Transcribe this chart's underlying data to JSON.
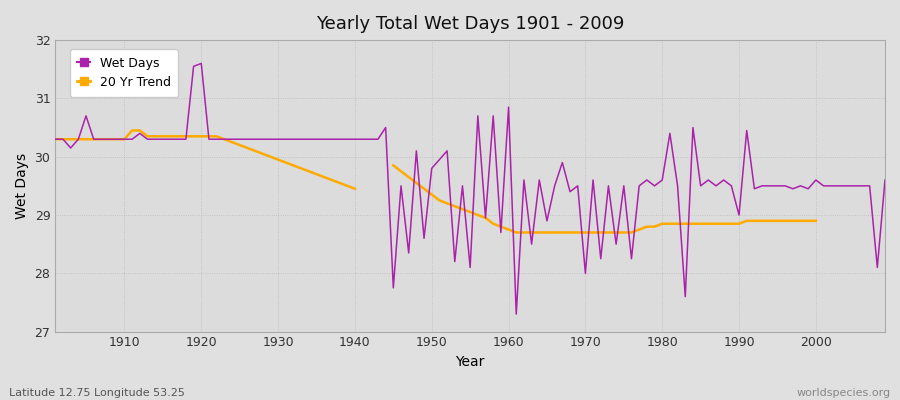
{
  "title": "Yearly Total Wet Days 1901 - 2009",
  "xlabel": "Year",
  "ylabel": "Wet Days",
  "lat_lon_label": "Latitude 12.75 Longitude 53.25",
  "source_label": "worldspecies.org",
  "ylim": [
    27,
    32
  ],
  "yticks": [
    27,
    28,
    29,
    30,
    31,
    32
  ],
  "bg_color": "#e8e8e8",
  "plot_bg_color": "#dcdcdc",
  "wet_days_color": "#aa22aa",
  "trend_color": "#ffaa00",
  "xticks": [
    1910,
    1920,
    1930,
    1940,
    1950,
    1960,
    1970,
    1980,
    1990,
    2000
  ],
  "wet_days": [
    30.3,
    30.3,
    30.15,
    30.3,
    30.7,
    30.3,
    30.3,
    30.3,
    30.3,
    30.3,
    30.3,
    30.4,
    30.3,
    30.3,
    30.3,
    30.3,
    30.3,
    30.3,
    31.55,
    31.6,
    30.3,
    30.3,
    30.3,
    30.3,
    30.3,
    30.3,
    30.3,
    30.3,
    30.3,
    30.3,
    30.3,
    30.3,
    30.3,
    30.3,
    30.3,
    30.3,
    30.3,
    30.3,
    30.3,
    30.3,
    30.3,
    30.3,
    30.3,
    30.5,
    27.75,
    29.5,
    28.35,
    30.1,
    28.6,
    29.8,
    29.95,
    30.1,
    28.2,
    29.5,
    28.1,
    30.7,
    28.95,
    30.7,
    28.7,
    30.85,
    27.3,
    29.6,
    28.5,
    29.6,
    28.9,
    29.5,
    29.9,
    29.4,
    29.5,
    28.0,
    29.6,
    28.25,
    29.5,
    28.5,
    29.5,
    28.25,
    29.5,
    29.6,
    29.5,
    29.6,
    30.4,
    29.5,
    27.6,
    30.5,
    29.5,
    29.6,
    29.5,
    29.6,
    29.5,
    29.0,
    30.45,
    29.45,
    29.5,
    29.5,
    29.5,
    29.5,
    29.45,
    29.5,
    29.45,
    29.6,
    29.5,
    29.5,
    29.5,
    29.5,
    29.5,
    29.5,
    29.5,
    28.1,
    29.6
  ],
  "trend": [
    30.3,
    30.3,
    30.3,
    30.3,
    30.3,
    30.3,
    30.3,
    30.3,
    30.3,
    30.3,
    30.45,
    30.45,
    30.35,
    30.35,
    30.35,
    30.35,
    30.35,
    30.35,
    30.35,
    30.35,
    30.35,
    30.35,
    30.3,
    30.25,
    30.2,
    30.15,
    30.1,
    30.05,
    30.0,
    29.95,
    29.9,
    29.85,
    29.8,
    29.75,
    29.7,
    29.65,
    29.6,
    29.55,
    29.5,
    29.45,
    null,
    null,
    null,
    null,
    29.85,
    29.75,
    29.65,
    29.55,
    29.45,
    29.35,
    29.25,
    29.2,
    29.15,
    29.1,
    29.05,
    29.0,
    28.95,
    28.85,
    28.8,
    28.75,
    28.7,
    28.7,
    28.7,
    28.7,
    28.7,
    28.7,
    28.7,
    28.7,
    28.7,
    28.7,
    28.7,
    28.7,
    28.7,
    28.7,
    28.7,
    28.7,
    28.75,
    28.8,
    28.8,
    28.85,
    28.85,
    28.85,
    28.85,
    28.85,
    28.85,
    28.85,
    28.85,
    28.85,
    28.85,
    28.85,
    28.9,
    28.9,
    28.9,
    28.9,
    28.9,
    28.9,
    28.9,
    28.9,
    28.9,
    28.9,
    null,
    null,
    null,
    null,
    null,
    null,
    null,
    null,
    null
  ]
}
